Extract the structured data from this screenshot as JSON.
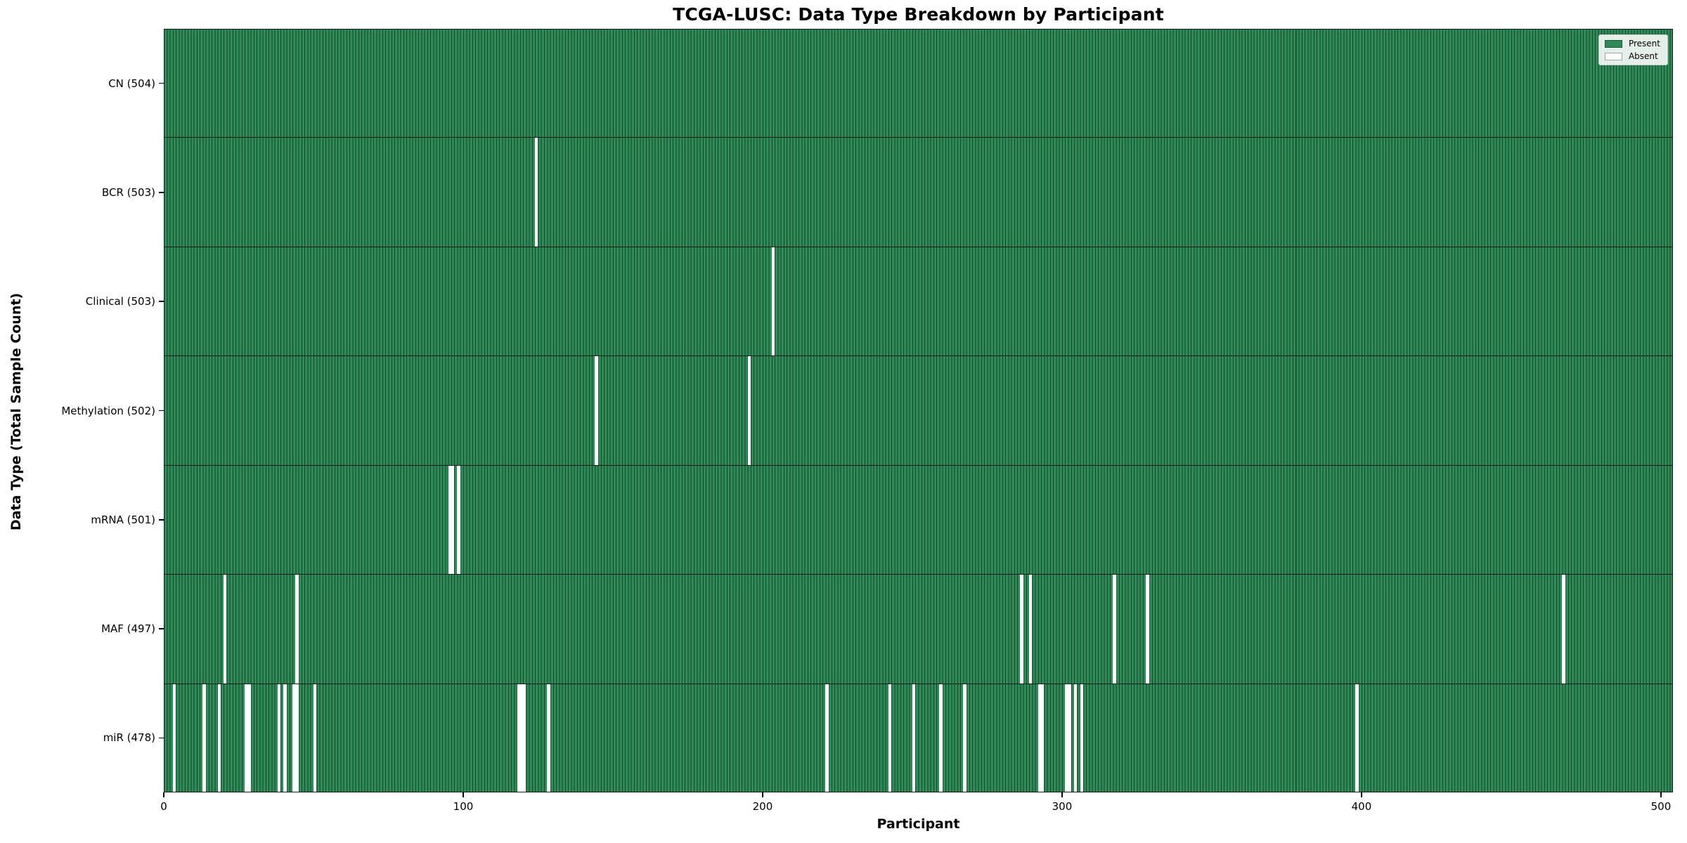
{
  "title": "TCGA-LUSC: Data Type Breakdown by Participant",
  "axes": {
    "x_label": "Participant",
    "y_label": "Data Type (Total Sample Count)"
  },
  "legend": {
    "items": [
      {
        "label": "Present",
        "color": "#2e8b57"
      },
      {
        "label": "Absent",
        "color": "#ffffff"
      }
    ],
    "position": "upper right"
  },
  "colors": {
    "present": "#2e8b57",
    "absent": "#ffffff",
    "cell_edge": "#17462b",
    "row_separator": "#141414",
    "frame": "#1a1a1a",
    "background": "#ffffff"
  },
  "chart_data": {
    "type": "heatmap",
    "title": "TCGA-LUSC: Data Type Breakdown by Participant",
    "xlabel": "Participant",
    "ylabel": "Data Type (Total Sample Count)",
    "legend_entries": [
      "Present",
      "Absent"
    ],
    "grid": false,
    "n_participants": 504,
    "x_range": [
      0,
      504
    ],
    "x_ticks": [
      0,
      100,
      200,
      300,
      400,
      500
    ],
    "rows": [
      {
        "data_type": "CN",
        "label": "CN (504)",
        "present_count": 504,
        "absent_participants": []
      },
      {
        "data_type": "BCR",
        "label": "BCR (503)",
        "present_count": 503,
        "absent_participants": [
          124
        ]
      },
      {
        "data_type": "Clinical",
        "label": "Clinical (503)",
        "present_count": 503,
        "absent_participants": [
          203
        ]
      },
      {
        "data_type": "Methylation",
        "label": "Methylation (502)",
        "present_count": 502,
        "absent_participants": [
          144,
          195
        ]
      },
      {
        "data_type": "mRNA",
        "label": "mRNA (501)",
        "present_count": 501,
        "absent_participants": [
          95,
          96,
          98
        ]
      },
      {
        "data_type": "MAF",
        "label": "MAF (497)",
        "present_count": 497,
        "absent_participants": [
          20,
          44,
          286,
          289,
          317,
          328,
          467
        ]
      },
      {
        "data_type": "miR",
        "label": "miR (478)",
        "present_count": 478,
        "absent_participants": [
          3,
          13,
          18,
          27,
          28,
          38,
          40,
          43,
          44,
          50,
          118,
          119,
          120,
          128,
          221,
          242,
          250,
          259,
          267,
          292,
          293,
          301,
          302,
          304,
          306,
          398
        ]
      }
    ]
  }
}
